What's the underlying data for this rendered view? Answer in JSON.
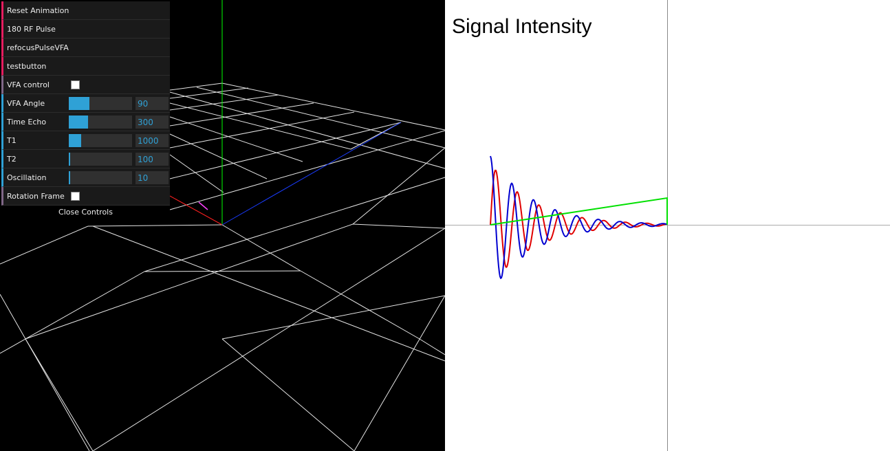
{
  "gui": {
    "buttons": [
      "Reset Animation",
      "180 RF Pulse",
      "refocusPulseVFA",
      "testbutton"
    ],
    "vfa_control": {
      "label": "VFA control",
      "checked": false
    },
    "sliders": [
      {
        "label": "VFA Angle",
        "value": "90",
        "fraction": 0.33
      },
      {
        "label": "Time Echo",
        "value": "300",
        "fraction": 0.3
      },
      {
        "label": "T1",
        "value": "1000",
        "fraction": 0.2
      },
      {
        "label": "T2",
        "value": "100",
        "fraction": 0.01
      },
      {
        "label": "Oscillation",
        "value": "10",
        "fraction": 0.01
      }
    ],
    "rotation_frame": {
      "label": "Rotation Frame",
      "checked": false
    },
    "close_label": "Close Controls"
  },
  "signal_panel": {
    "title": "Signal Intensity",
    "colors": {
      "red_curve": "#e00000",
      "blue_curve": "#0000d0",
      "green_envelope": "#00e000",
      "axis": "#aaaaaa"
    }
  },
  "scene": {
    "colors": {
      "grid": "#ffffff",
      "y_axis": "#00ff00",
      "z_axis": "#0000ff",
      "x_axis": "#ff0000",
      "vector": "#ff00ff"
    }
  }
}
